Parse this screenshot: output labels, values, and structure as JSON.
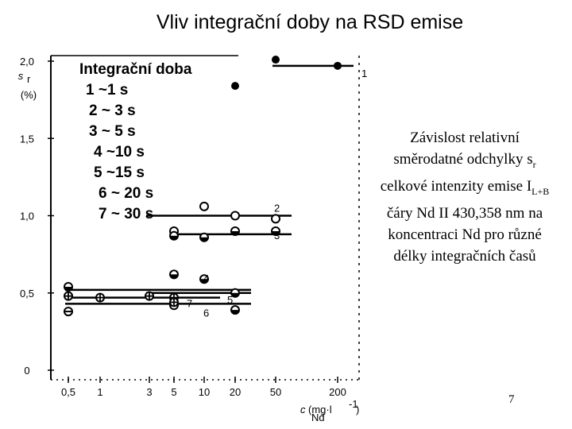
{
  "slide": {
    "title": "Vliv integrační doby na RSD emise",
    "note_parts": [
      "Závislost relativní směrodatné odchylky s",
      "r",
      " celkové intenzity emise I",
      "L+B",
      " čáry Nd II 430,358 nm na koncentraci Nd pro různé délky integračních časů"
    ],
    "page_number": "7"
  },
  "chart_data": {
    "type": "scatter",
    "ylabel_main": "s",
    "ylabel_sub": "r",
    "ylabel_unit": "(%)",
    "xlabel_main": "c",
    "xlabel_sub": "Nd",
    "xlabel_unit": "(mg·l",
    "xlabel_unit_exp": "-1",
    "xlabel_unit_close": ")",
    "x_scale": "log",
    "x_ticks": [
      0.5,
      1,
      3,
      5,
      10,
      20,
      50,
      200
    ],
    "x_tick_labels": [
      "0,5",
      "1",
      "3",
      "5",
      "10",
      "20",
      "50",
      "200"
    ],
    "y_ticks": [
      0,
      0.5,
      1.0,
      1.5,
      2.0
    ],
    "y_tick_labels": [
      "0",
      "0,5",
      "1,0",
      "1,5",
      "2,0"
    ],
    "ylim": [
      0,
      2.0
    ],
    "legend_title": "Integrační doba",
    "legend_items": [
      "1 ~1 s",
      "2 ~ 3 s",
      "3 ~ 5 s",
      "4 ~10 s",
      "5 ~15 s",
      "6 ~ 20 s",
      "7 ~ 30 s"
    ],
    "series": [
      {
        "name": "1",
        "marker": "filled",
        "points": [
          [
            20,
            1.84
          ],
          [
            50,
            2.01
          ],
          [
            200,
            1.97
          ]
        ],
        "line": {
          "x": [
            50,
            200
          ],
          "y": 1.97
        }
      },
      {
        "name": "2",
        "marker": "open",
        "points": [
          [
            5,
            0.9
          ],
          [
            10,
            1.06
          ],
          [
            20,
            1.0
          ],
          [
            50,
            0.98
          ]
        ],
        "line": {
          "x": [
            3,
            50
          ],
          "y": 1.0
        }
      },
      {
        "name": "3",
        "marker": "half",
        "points": [
          [
            5,
            0.87
          ],
          [
            10,
            0.86
          ],
          [
            20,
            0.9
          ],
          [
            50,
            0.9
          ]
        ],
        "line": {
          "x": [
            5,
            50
          ],
          "y": 0.88
        }
      },
      {
        "name": "4",
        "marker": "half",
        "points": [
          [
            0.5,
            0.54
          ],
          [
            5,
            0.62
          ],
          [
            10,
            0.59
          ]
        ],
        "line": {
          "x": [
            0.5,
            20
          ],
          "y": 0.52
        }
      },
      {
        "name": "5",
        "marker": "half",
        "points": [
          [
            20,
            0.5
          ],
          [
            20,
            0.39
          ]
        ],
        "line": {
          "x": [
            3,
            20
          ],
          "y": 0.5
        }
      },
      {
        "name": "6",
        "marker": "minus",
        "points": [
          [
            0.5,
            0.38
          ],
          [
            5,
            0.42
          ]
        ],
        "line": {
          "x": [
            0.5,
            20
          ],
          "y": 0.43
        }
      },
      {
        "name": "7",
        "marker": "plus",
        "points": [
          [
            0.5,
            0.48
          ],
          [
            1,
            0.47
          ],
          [
            3,
            0.48
          ],
          [
            5,
            0.47
          ],
          [
            5,
            0.44
          ]
        ],
        "line": {
          "x": [
            0.5,
            10
          ],
          "y": 0.47
        }
      }
    ]
  }
}
